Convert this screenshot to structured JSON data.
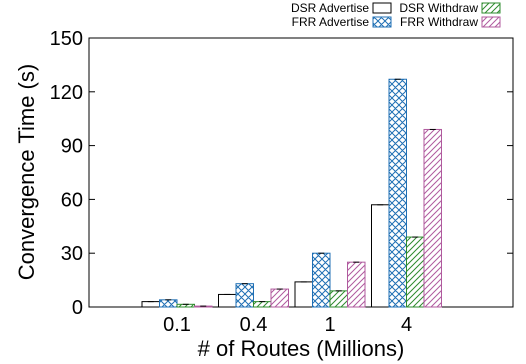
{
  "chart_data": {
    "type": "bar",
    "title": "",
    "xlabel": "# of Routes (Millions)",
    "ylabel": "Convergence Time (s)",
    "categories": [
      "0.1",
      "0.4",
      "1",
      "4"
    ],
    "ylim": [
      0,
      150
    ],
    "yticks": [
      0,
      30,
      60,
      90,
      120,
      150
    ],
    "grid": false,
    "legend_position": "top-right",
    "series": [
      {
        "name": "DSR Advertise",
        "values": [
          3,
          7,
          14,
          57
        ],
        "color": "#000000",
        "pattern": "none"
      },
      {
        "name": "FRR Advertise",
        "values": [
          4,
          13,
          30,
          127
        ],
        "color": "#1f6fb4",
        "pattern": "crosshatch"
      },
      {
        "name": "DSR Withdraw",
        "values": [
          1.5,
          3,
          9,
          39
        ],
        "color": "#2e8b2e",
        "pattern": "diagonal"
      },
      {
        "name": "FRR Withdraw",
        "values": [
          0.5,
          10,
          25,
          99
        ],
        "color": "#b05a9e",
        "pattern": "diagonal"
      }
    ]
  }
}
